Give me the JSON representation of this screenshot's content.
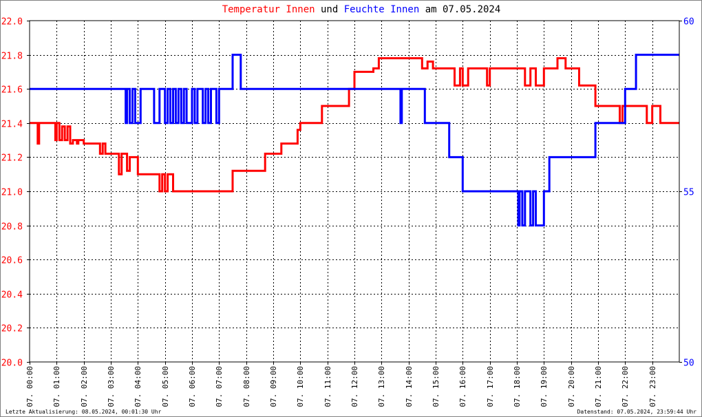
{
  "chart_data": {
    "type": "line",
    "title_parts": [
      {
        "text": "Temperatur Innen",
        "color": "#ff0000"
      },
      {
        "text": " und ",
        "color": "#000000"
      },
      {
        "text": "Feuchte Innen",
        "color": "#0000ff"
      },
      {
        "text": " am 07.05.2024",
        "color": "#000000"
      }
    ],
    "x_tick_labels": [
      "07. 00:00",
      "07. 01:00",
      "07. 02:00",
      "07. 03:00",
      "07. 04:00",
      "07. 05:00",
      "07. 06:00",
      "07. 07:00",
      "07. 08:00",
      "07. 09:00",
      "07. 10:00",
      "07. 11:00",
      "07. 12:00",
      "07. 13:00",
      "07. 14:00",
      "07. 15:00",
      "07. 16:00",
      "07. 17:00",
      "07. 18:00",
      "07. 19:00",
      "07. 20:00",
      "07. 21:00",
      "07. 22:00",
      "07. 23:00"
    ],
    "x_range_hours": [
      0,
      24
    ],
    "y_left": {
      "range": [
        20.0,
        22.0
      ],
      "ticks": [
        "20.0",
        "20.2",
        "20.4",
        "20.6",
        "20.8",
        "21.0",
        "21.2",
        "21.4",
        "21.6",
        "21.8",
        "22.0"
      ],
      "color": "#ff0000"
    },
    "y_right": {
      "range": [
        50,
        60
      ],
      "ticks": [
        "50",
        "55",
        "60"
      ],
      "color": "#0000ff"
    },
    "grid": true,
    "series": [
      {
        "axis": "left",
        "color": "#ff0000",
        "x": [
          0,
          0.25,
          0.3,
          0.35,
          0.9,
          0.95,
          1.0,
          1.1,
          1.2,
          1.3,
          1.4,
          1.5,
          1.6,
          1.75,
          1.8,
          2.0,
          2.5,
          2.6,
          2.7,
          2.8,
          3.0,
          3.2,
          3.3,
          3.4,
          3.5,
          3.6,
          3.7,
          4.0,
          4.5,
          4.8,
          4.9,
          5.0,
          5.1,
          5.3,
          5.6,
          7.0,
          7.5,
          8.5,
          8.7,
          9.0,
          9.3,
          9.7,
          9.9,
          10.0,
          10.6,
          10.8,
          11.0,
          11.8,
          11.9,
          12.0,
          12.5,
          12.7,
          12.9,
          13.0,
          13.5,
          14.0,
          14.5,
          14.7,
          14.9,
          15.0,
          15.5,
          15.7,
          15.9,
          16.0,
          16.2,
          16.4,
          16.5,
          16.7,
          16.9,
          17.0,
          17.5,
          18.0,
          18.3,
          18.5,
          18.7,
          19.0,
          19.3,
          19.5,
          19.8,
          20.0,
          20.3,
          20.6,
          20.9,
          21.0,
          21.5,
          21.8,
          21.9,
          22.0,
          22.5,
          22.8,
          23.0,
          23.3,
          23.6,
          24.0
        ],
        "y": [
          21.4,
          21.4,
          21.28,
          21.4,
          21.4,
          21.3,
          21.4,
          21.3,
          21.38,
          21.3,
          21.38,
          21.28,
          21.3,
          21.28,
          21.3,
          21.28,
          21.28,
          21.22,
          21.28,
          21.22,
          21.22,
          21.22,
          21.1,
          21.22,
          21.22,
          21.12,
          21.2,
          21.1,
          21.1,
          21.0,
          21.1,
          21.0,
          21.1,
          21.0,
          21.0,
          21.0,
          21.12,
          21.12,
          21.22,
          21.22,
          21.28,
          21.28,
          21.36,
          21.4,
          21.4,
          21.5,
          21.5,
          21.6,
          21.6,
          21.7,
          21.7,
          21.72,
          21.78,
          21.78,
          21.78,
          21.78,
          21.72,
          21.76,
          21.72,
          21.72,
          21.72,
          21.62,
          21.72,
          21.62,
          21.72,
          21.72,
          21.72,
          21.72,
          21.62,
          21.72,
          21.72,
          21.72,
          21.62,
          21.72,
          21.62,
          21.72,
          21.72,
          21.78,
          21.72,
          21.72,
          21.62,
          21.62,
          21.5,
          21.5,
          21.5,
          21.4,
          21.5,
          21.5,
          21.5,
          21.4,
          21.5,
          21.4,
          21.4,
          21.4
        ]
      },
      {
        "axis": "right",
        "color": "#0000ff",
        "x": [
          0,
          3.5,
          3.55,
          3.6,
          3.7,
          3.8,
          3.9,
          4.1,
          4.2,
          4.5,
          4.6,
          4.8,
          4.9,
          5.0,
          5.1,
          5.2,
          5.3,
          5.4,
          5.5,
          5.6,
          5.7,
          5.8,
          6.0,
          6.1,
          6.2,
          6.4,
          6.5,
          6.6,
          6.7,
          6.8,
          6.9,
          7.0,
          7.4,
          7.5,
          7.6,
          7.8,
          11.0,
          13.0,
          13.65,
          13.7,
          13.75,
          14.5,
          14.6,
          15.0,
          15.5,
          15.8,
          16.0,
          17.5,
          18.0,
          18.05,
          18.1,
          18.2,
          18.3,
          18.5,
          18.6,
          18.7,
          19.0,
          19.2,
          20.0,
          20.7,
          20.9,
          21.0,
          21.7,
          22.0,
          22.3,
          22.4,
          22.5,
          24.0
        ],
        "y": [
          58,
          58,
          57,
          58,
          57,
          58,
          57,
          58,
          58,
          58,
          57,
          58,
          58,
          57,
          58,
          57,
          58,
          57,
          58,
          57,
          58,
          57,
          58,
          57,
          58,
          57,
          58,
          57,
          58,
          58,
          57,
          58,
          58,
          59,
          59,
          58,
          58,
          58,
          58,
          57,
          58,
          58,
          57,
          57,
          56,
          56,
          55,
          55,
          55,
          54,
          55,
          54,
          55,
          54,
          55,
          54,
          55,
          56,
          56,
          56,
          57,
          57,
          57,
          58,
          58,
          59,
          59,
          59
        ]
      }
    ]
  },
  "footer": {
    "left": "Letzte Aktualisierung: 08.05.2024, 00:01:30 Uhr",
    "right": "Datenstand: 07.05.2024, 23:59:44 Uhr"
  }
}
